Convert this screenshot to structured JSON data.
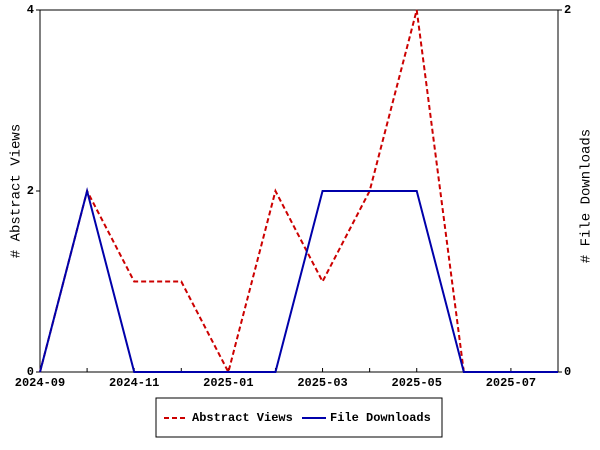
{
  "chart_data": {
    "type": "line",
    "categories": [
      "2024-09",
      null,
      "2024-11",
      null,
      "2025-01",
      null,
      "2025-03",
      null,
      "2025-05",
      null,
      "2025-07",
      null
    ],
    "series": [
      {
        "name": "Abstract Views",
        "color": "#cc0000",
        "dashed": true,
        "values": [
          0,
          2,
          1,
          1,
          0,
          2,
          1,
          2,
          4,
          0,
          0,
          0
        ]
      },
      {
        "name": "File Downloads",
        "color": "#0000aa",
        "axis": "y2",
        "values": [
          0,
          1,
          0,
          0,
          0,
          0,
          1,
          1,
          1,
          0,
          0,
          0
        ]
      }
    ],
    "ylabel": "# Abstract Views",
    "y2label": "# File Downloads",
    "ylim": [
      0,
      4
    ],
    "yticks": [
      0,
      2,
      4
    ],
    "y2lim": [
      0,
      2
    ],
    "y2ticks": [
      0,
      2
    ],
    "legend": "bottom"
  }
}
